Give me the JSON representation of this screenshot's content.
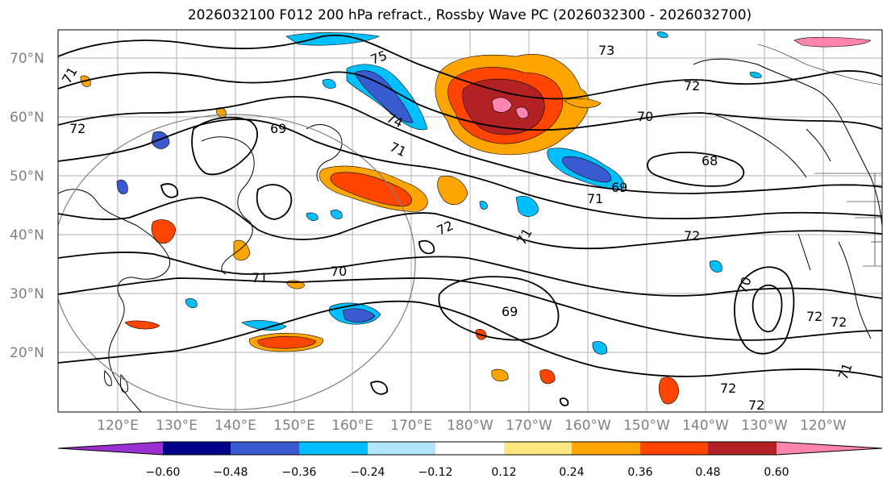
{
  "title": "2026032100 F012 200 hPa refract., Rossby Wave PC (2026032300 - 2026032700)",
  "map": {
    "lat_labels": [
      "70°N",
      "60°N",
      "50°N",
      "40°N",
      "30°N",
      "20°N"
    ],
    "lon_labels": [
      "120°E",
      "130°E",
      "140°E",
      "150°E",
      "160°E",
      "170°E",
      "180°W",
      "170°W",
      "160°W",
      "150°W",
      "140°W",
      "130°W",
      "120°W"
    ],
    "contour_labels": [
      "75",
      "73",
      "74",
      "71",
      "72",
      "72",
      "70",
      "69",
      "68",
      "69",
      "71",
      "72",
      "71",
      "72",
      "70",
      "69",
      "71",
      "70",
      "72",
      "72",
      "72",
      "72",
      "71",
      "71"
    ]
  },
  "colorbar": {
    "ticks": [
      "−0.60",
      "−0.48",
      "−0.36",
      "−0.24",
      "−0.12",
      "0.12",
      "0.24",
      "0.36",
      "0.48",
      "0.60"
    ],
    "colors": [
      "#9b30d0",
      "#00008b",
      "#3a5bd0",
      "#00bfff",
      "#b3e5fc",
      "#ffffff",
      "#ffe680",
      "#ffa500",
      "#ff4500",
      "#b22222",
      "#ff85b0"
    ]
  }
}
